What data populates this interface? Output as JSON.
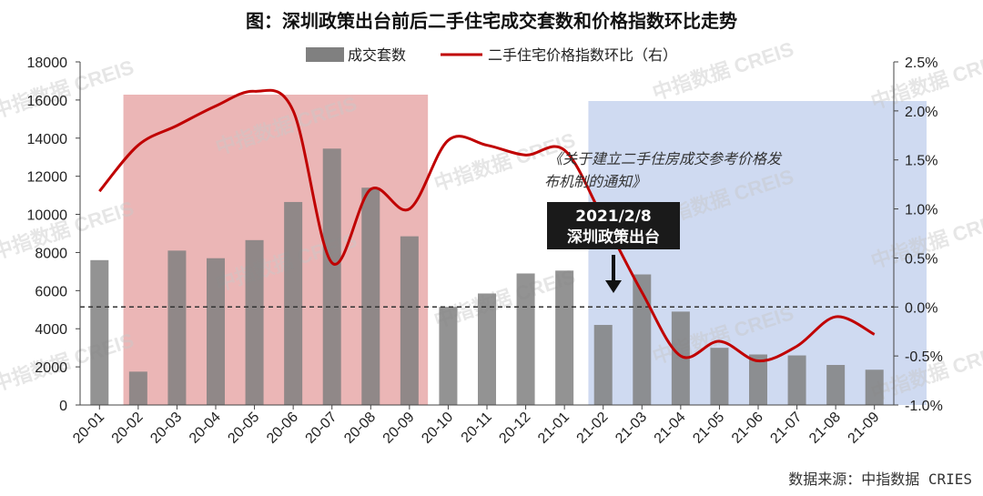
{
  "chart_data": {
    "type": "bar+line",
    "title": "图：深圳政策出台前后二手住宅成交套数和价格指数环比走势",
    "categories": [
      "20-01",
      "20-02",
      "20-03",
      "20-04",
      "20-05",
      "20-06",
      "20-07",
      "20-08",
      "20-09",
      "20-10",
      "20-11",
      "20-12",
      "21-01",
      "21-02",
      "21-03",
      "21-04",
      "21-05",
      "21-06",
      "21-07",
      "21-08",
      "21-09"
    ],
    "series": [
      {
        "name": "成交套数",
        "type": "bar",
        "axis": "left",
        "color": "#808080",
        "values": [
          7600,
          1750,
          8100,
          7700,
          8650,
          10650,
          13450,
          11400,
          8850,
          5150,
          5850,
          6900,
          7050,
          4200,
          6850,
          4900,
          3000,
          2650,
          2600,
          2100,
          1850
        ]
      },
      {
        "name": "二手住宅价格指数环比（右）",
        "type": "line",
        "axis": "right",
        "color": "#c00000",
        "values": [
          1.18,
          1.65,
          1.85,
          2.05,
          2.2,
          2.0,
          0.45,
          1.2,
          1.0,
          1.7,
          1.65,
          1.55,
          1.6,
          0.9,
          0.15,
          -0.5,
          -0.35,
          -0.55,
          -0.4,
          -0.1,
          -0.28
        ]
      }
    ],
    "y_left": {
      "min": 0,
      "max": 18000,
      "ticks": [
        "0",
        "2000",
        "4000",
        "6000",
        "8000",
        "10000",
        "12000",
        "14000",
        "16000",
        "18000"
      ]
    },
    "y_right": {
      "min": -1.0,
      "max": 2.5,
      "ticks": [
        "-1.0%",
        "-0.5%",
        "0.0%",
        "0.5%",
        "1.0%",
        "1.5%",
        "2.0%",
        "2.5%"
      ]
    },
    "legend": "top-center",
    "shaded_regions": [
      {
        "from": "20-02",
        "to": "20-09",
        "color": "#e8a9a9"
      },
      {
        "from": "21-02",
        "to": "21-09",
        "color": "#c7d3ee"
      }
    ],
    "zero_line": "dashed"
  },
  "annotation": {
    "policy_text": [
      "《关于建立二手住房成交参考价格发",
      "布机制的通知》"
    ],
    "callout_date": "2021/2/8",
    "callout_label": "深圳政策出台"
  },
  "source": "数据来源：中指数据 CRIES",
  "watermark": "中指数据 CREIS",
  "legend": {
    "bar_label": "成交套数",
    "line_label": "二手住宅价格指数环比（右）"
  }
}
